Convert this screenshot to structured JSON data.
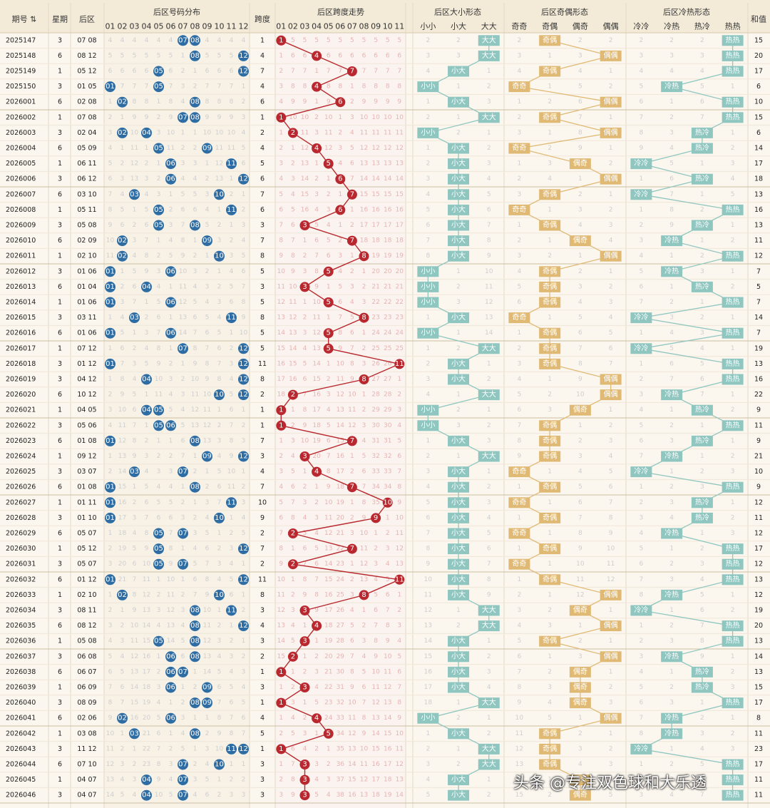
{
  "header": {
    "issue": "期号",
    "weekday": "星期",
    "back": "后区",
    "dist_title": "后区号码分布",
    "dist_numbers": [
      "01",
      "02",
      "03",
      "04",
      "05",
      "06",
      "07",
      "08",
      "09",
      "10",
      "11",
      "12"
    ],
    "span": "跨度",
    "span_title": "后区跨度走势",
    "span_numbers": [
      "01",
      "02",
      "03",
      "04",
      "05",
      "06",
      "07",
      "08",
      "09",
      "10",
      "11"
    ],
    "size_title": "后区大小形态",
    "size_cols": [
      "小小",
      "小大",
      "大大"
    ],
    "parity_title": "后区奇偶形态",
    "parity_cols": [
      "奇奇",
      "奇偶",
      "偶奇",
      "偶偶"
    ],
    "temp_title": "后区冷热形态",
    "temp_cols": [
      "冷冷",
      "冷热",
      "热冷",
      "热热"
    ],
    "sum": "和值"
  },
  "watermark": "头条 @专注双色球和大乐透",
  "colors": {
    "ball": "#2e6da4",
    "span": "#b8282e",
    "size": "#8fc6c0",
    "parity": "#e0ba75",
    "temp": "#8fc6c0"
  },
  "chart_data": {
    "type": "table",
    "rows": [
      {
        "issue": "2025147",
        "week": "3",
        "nums": [
          7,
          8
        ],
        "span": 1,
        "size": "大大",
        "parity": "奇偶",
        "temp": "热热",
        "sum": 15
      },
      {
        "issue": "2025148",
        "week": "6",
        "nums": [
          8,
          12
        ],
        "span": 4,
        "size": "大大",
        "parity": "偶偶",
        "temp": "热热",
        "sum": 20
      },
      {
        "issue": "2025149",
        "week": "1",
        "nums": [
          5,
          12
        ],
        "span": 7,
        "size": "小大",
        "parity": "奇偶",
        "temp": "热热",
        "sum": 17
      },
      {
        "issue": "2025150",
        "week": "3",
        "nums": [
          1,
          5
        ],
        "span": 4,
        "size": "小小",
        "parity": "奇奇",
        "temp": "冷热",
        "sum": 6
      },
      {
        "issue": "2026001",
        "week": "6",
        "nums": [
          2,
          8
        ],
        "span": 6,
        "size": "小大",
        "parity": "偶偶",
        "temp": "热热",
        "sum": 10
      },
      {
        "issue": "2026002",
        "week": "1",
        "nums": [
          7,
          8
        ],
        "span": 1,
        "size": "大大",
        "parity": "奇偶",
        "temp": "热热",
        "sum": 15
      },
      {
        "issue": "2026003",
        "week": "3",
        "nums": [
          2,
          4
        ],
        "span": 2,
        "size": "小小",
        "parity": "偶偶",
        "temp": "热冷",
        "sum": 6
      },
      {
        "issue": "2026004",
        "week": "6",
        "nums": [
          5,
          9
        ],
        "span": 4,
        "size": "小大",
        "parity": "奇奇",
        "temp": "热冷",
        "sum": 14
      },
      {
        "issue": "2026005",
        "week": "1",
        "nums": [
          6,
          11
        ],
        "span": 5,
        "size": "小大",
        "parity": "偶奇",
        "temp": "冷冷",
        "sum": 17
      },
      {
        "issue": "2026006",
        "week": "3",
        "nums": [
          6,
          12
        ],
        "span": 6,
        "size": "小大",
        "parity": "偶偶",
        "temp": "热冷",
        "sum": 18
      },
      {
        "issue": "2026007",
        "week": "6",
        "nums": [
          3,
          10
        ],
        "span": 7,
        "size": "小大",
        "parity": "奇偶",
        "temp": "冷冷",
        "sum": 13
      },
      {
        "issue": "2026008",
        "week": "1",
        "nums": [
          5,
          11
        ],
        "span": 6,
        "size": "小大",
        "parity": "奇奇",
        "temp": "热热",
        "sum": 16
      },
      {
        "issue": "2026009",
        "week": "3",
        "nums": [
          5,
          8
        ],
        "span": 3,
        "size": "小大",
        "parity": "奇偶",
        "temp": "热冷",
        "sum": 13
      },
      {
        "issue": "2026010",
        "week": "6",
        "nums": [
          2,
          9
        ],
        "span": 7,
        "size": "小大",
        "parity": "偶奇",
        "temp": "冷热",
        "sum": 11
      },
      {
        "issue": "2026011",
        "week": "1",
        "nums": [
          2,
          10
        ],
        "span": 8,
        "size": "小大",
        "parity": "偶偶",
        "temp": "热热",
        "sum": 12
      },
      {
        "issue": "2026012",
        "week": "3",
        "nums": [
          1,
          6
        ],
        "span": 5,
        "size": "小小",
        "parity": "奇偶",
        "temp": "冷热",
        "sum": 7
      },
      {
        "issue": "2026013",
        "week": "6",
        "nums": [
          1,
          4
        ],
        "span": 3,
        "size": "小小",
        "parity": "奇偶",
        "temp": "热冷",
        "sum": 5
      },
      {
        "issue": "2026014",
        "week": "1",
        "nums": [
          1,
          6
        ],
        "span": 5,
        "size": "小小",
        "parity": "奇偶",
        "temp": "热热",
        "sum": 7
      },
      {
        "issue": "2026015",
        "week": "3",
        "nums": [
          3,
          11
        ],
        "span": 8,
        "size": "小大",
        "parity": "奇奇",
        "temp": "冷冷",
        "sum": 14
      },
      {
        "issue": "2026016",
        "week": "6",
        "nums": [
          1,
          6
        ],
        "span": 5,
        "size": "小小",
        "parity": "奇偶",
        "temp": "热热",
        "sum": 7
      },
      {
        "issue": "2026017",
        "week": "1",
        "nums": [
          7,
          12
        ],
        "span": 5,
        "size": "大大",
        "parity": "奇偶",
        "temp": "冷冷",
        "sum": 19
      },
      {
        "issue": "2026018",
        "week": "3",
        "nums": [
          1,
          12
        ],
        "span": 11,
        "size": "小大",
        "parity": "奇偶",
        "temp": "热热",
        "sum": 13
      },
      {
        "issue": "2026019",
        "week": "3",
        "nums": [
          4,
          12
        ],
        "span": 8,
        "size": "小大",
        "parity": "偶偶",
        "temp": "热热",
        "sum": 16
      },
      {
        "issue": "2026020",
        "week": "6",
        "nums": [
          10,
          12
        ],
        "span": 2,
        "size": "大大",
        "parity": "偶偶",
        "temp": "冷热",
        "sum": 22
      },
      {
        "issue": "2026021",
        "week": "1",
        "nums": [
          4,
          5
        ],
        "span": 1,
        "size": "小小",
        "parity": "偶奇",
        "temp": "热冷",
        "sum": 9
      },
      {
        "issue": "2026022",
        "week": "3",
        "nums": [
          5,
          6
        ],
        "span": 1,
        "size": "小小",
        "parity": "奇偶",
        "temp": "热热",
        "sum": 11
      },
      {
        "issue": "2026023",
        "week": "6",
        "nums": [
          1,
          8
        ],
        "span": 7,
        "size": "小大",
        "parity": "奇偶",
        "temp": "热冷",
        "sum": 9
      },
      {
        "issue": "2026024",
        "week": "1",
        "nums": [
          9,
          12
        ],
        "span": 3,
        "size": "大大",
        "parity": "奇偶",
        "temp": "冷热",
        "sum": 21
      },
      {
        "issue": "2026025",
        "week": "3",
        "nums": [
          3,
          7
        ],
        "span": 4,
        "size": "小大",
        "parity": "奇奇",
        "temp": "冷冷",
        "sum": 10
      },
      {
        "issue": "2026026",
        "week": "6",
        "nums": [
          1,
          8
        ],
        "span": 7,
        "size": "小大",
        "parity": "奇偶",
        "temp": "热热",
        "sum": 9
      },
      {
        "issue": "2026027",
        "week": "1",
        "nums": [
          1,
          11
        ],
        "span": 10,
        "size": "小大",
        "parity": "奇奇",
        "temp": "热冷",
        "sum": 12
      },
      {
        "issue": "2026028",
        "week": "3",
        "nums": [
          1,
          10
        ],
        "span": 9,
        "size": "小大",
        "parity": "奇偶",
        "temp": "热冷",
        "sum": 11
      },
      {
        "issue": "2026029",
        "week": "6",
        "nums": [
          5,
          7
        ],
        "span": 2,
        "size": "小大",
        "parity": "奇奇",
        "temp": "冷热",
        "sum": 12
      },
      {
        "issue": "2026030",
        "week": "1",
        "nums": [
          5,
          12
        ],
        "span": 7,
        "size": "小大",
        "parity": "奇偶",
        "temp": "热热",
        "sum": 17
      },
      {
        "issue": "2026031",
        "week": "3",
        "nums": [
          5,
          7
        ],
        "span": 2,
        "size": "小大",
        "parity": "奇奇",
        "temp": "热热",
        "sum": 12
      },
      {
        "issue": "2026032",
        "week": "6",
        "nums": [
          1,
          12
        ],
        "span": 11,
        "size": "小大",
        "parity": "奇偶",
        "temp": "热热",
        "sum": 13
      },
      {
        "issue": "2026033",
        "week": "1",
        "nums": [
          2,
          10
        ],
        "span": 8,
        "size": "小大",
        "parity": "偶偶",
        "temp": "冷热",
        "sum": 12
      },
      {
        "issue": "2026034",
        "week": "3",
        "nums": [
          8,
          11
        ],
        "span": 3,
        "size": "大大",
        "parity": "偶奇",
        "temp": "冷冷",
        "sum": 19
      },
      {
        "issue": "2026035",
        "week": "6",
        "nums": [
          8,
          12
        ],
        "span": 4,
        "size": "大大",
        "parity": "偶偶",
        "temp": "热热",
        "sum": 20
      },
      {
        "issue": "2026036",
        "week": "1",
        "nums": [
          5,
          8
        ],
        "span": 3,
        "size": "小大",
        "parity": "奇偶",
        "temp": "热热",
        "sum": 13
      },
      {
        "issue": "2026037",
        "week": "3",
        "nums": [
          6,
          8
        ],
        "span": 2,
        "size": "小大",
        "parity": "偶偶",
        "temp": "冷热",
        "sum": 14
      },
      {
        "issue": "2026038",
        "week": "6",
        "nums": [
          6,
          7
        ],
        "span": 1,
        "size": "小大",
        "parity": "偶奇",
        "temp": "热冷",
        "sum": 13
      },
      {
        "issue": "2026039",
        "week": "1",
        "nums": [
          6,
          9
        ],
        "span": 3,
        "size": "小大",
        "parity": "偶奇",
        "temp": "热冷",
        "sum": 15
      },
      {
        "issue": "2026040",
        "week": "3",
        "nums": [
          8,
          9
        ],
        "span": 1,
        "size": "大大",
        "parity": "偶奇",
        "temp": "热热",
        "sum": 17
      },
      {
        "issue": "2026041",
        "week": "6",
        "nums": [
          2,
          6
        ],
        "span": 4,
        "size": "小小",
        "parity": "偶偶",
        "temp": "冷热",
        "sum": 8
      },
      {
        "issue": "2026042",
        "week": "1",
        "nums": [
          3,
          8
        ],
        "span": 5,
        "size": "小大",
        "parity": "奇偶",
        "temp": "冷热",
        "sum": 11
      },
      {
        "issue": "2026043",
        "week": "3",
        "nums": [
          11,
          12
        ],
        "span": 1,
        "size": "大大",
        "parity": "奇偶",
        "temp": "冷冷",
        "sum": 23
      },
      {
        "issue": "2026044",
        "week": "6",
        "nums": [
          7,
          10
        ],
        "span": 3,
        "size": "大大",
        "parity": "奇偶",
        "temp": "热热",
        "sum": 17
      },
      {
        "issue": "2026045",
        "week": "1",
        "nums": [
          4,
          7
        ],
        "span": 3,
        "size": "小大",
        "parity": "偶奇",
        "temp": "热热",
        "sum": 11
      },
      {
        "issue": "2026046",
        "week": "3",
        "nums": [
          4,
          7
        ],
        "span": 3,
        "size": "小大",
        "parity": "偶奇",
        "temp": "热热",
        "sum": 11
      }
    ]
  }
}
